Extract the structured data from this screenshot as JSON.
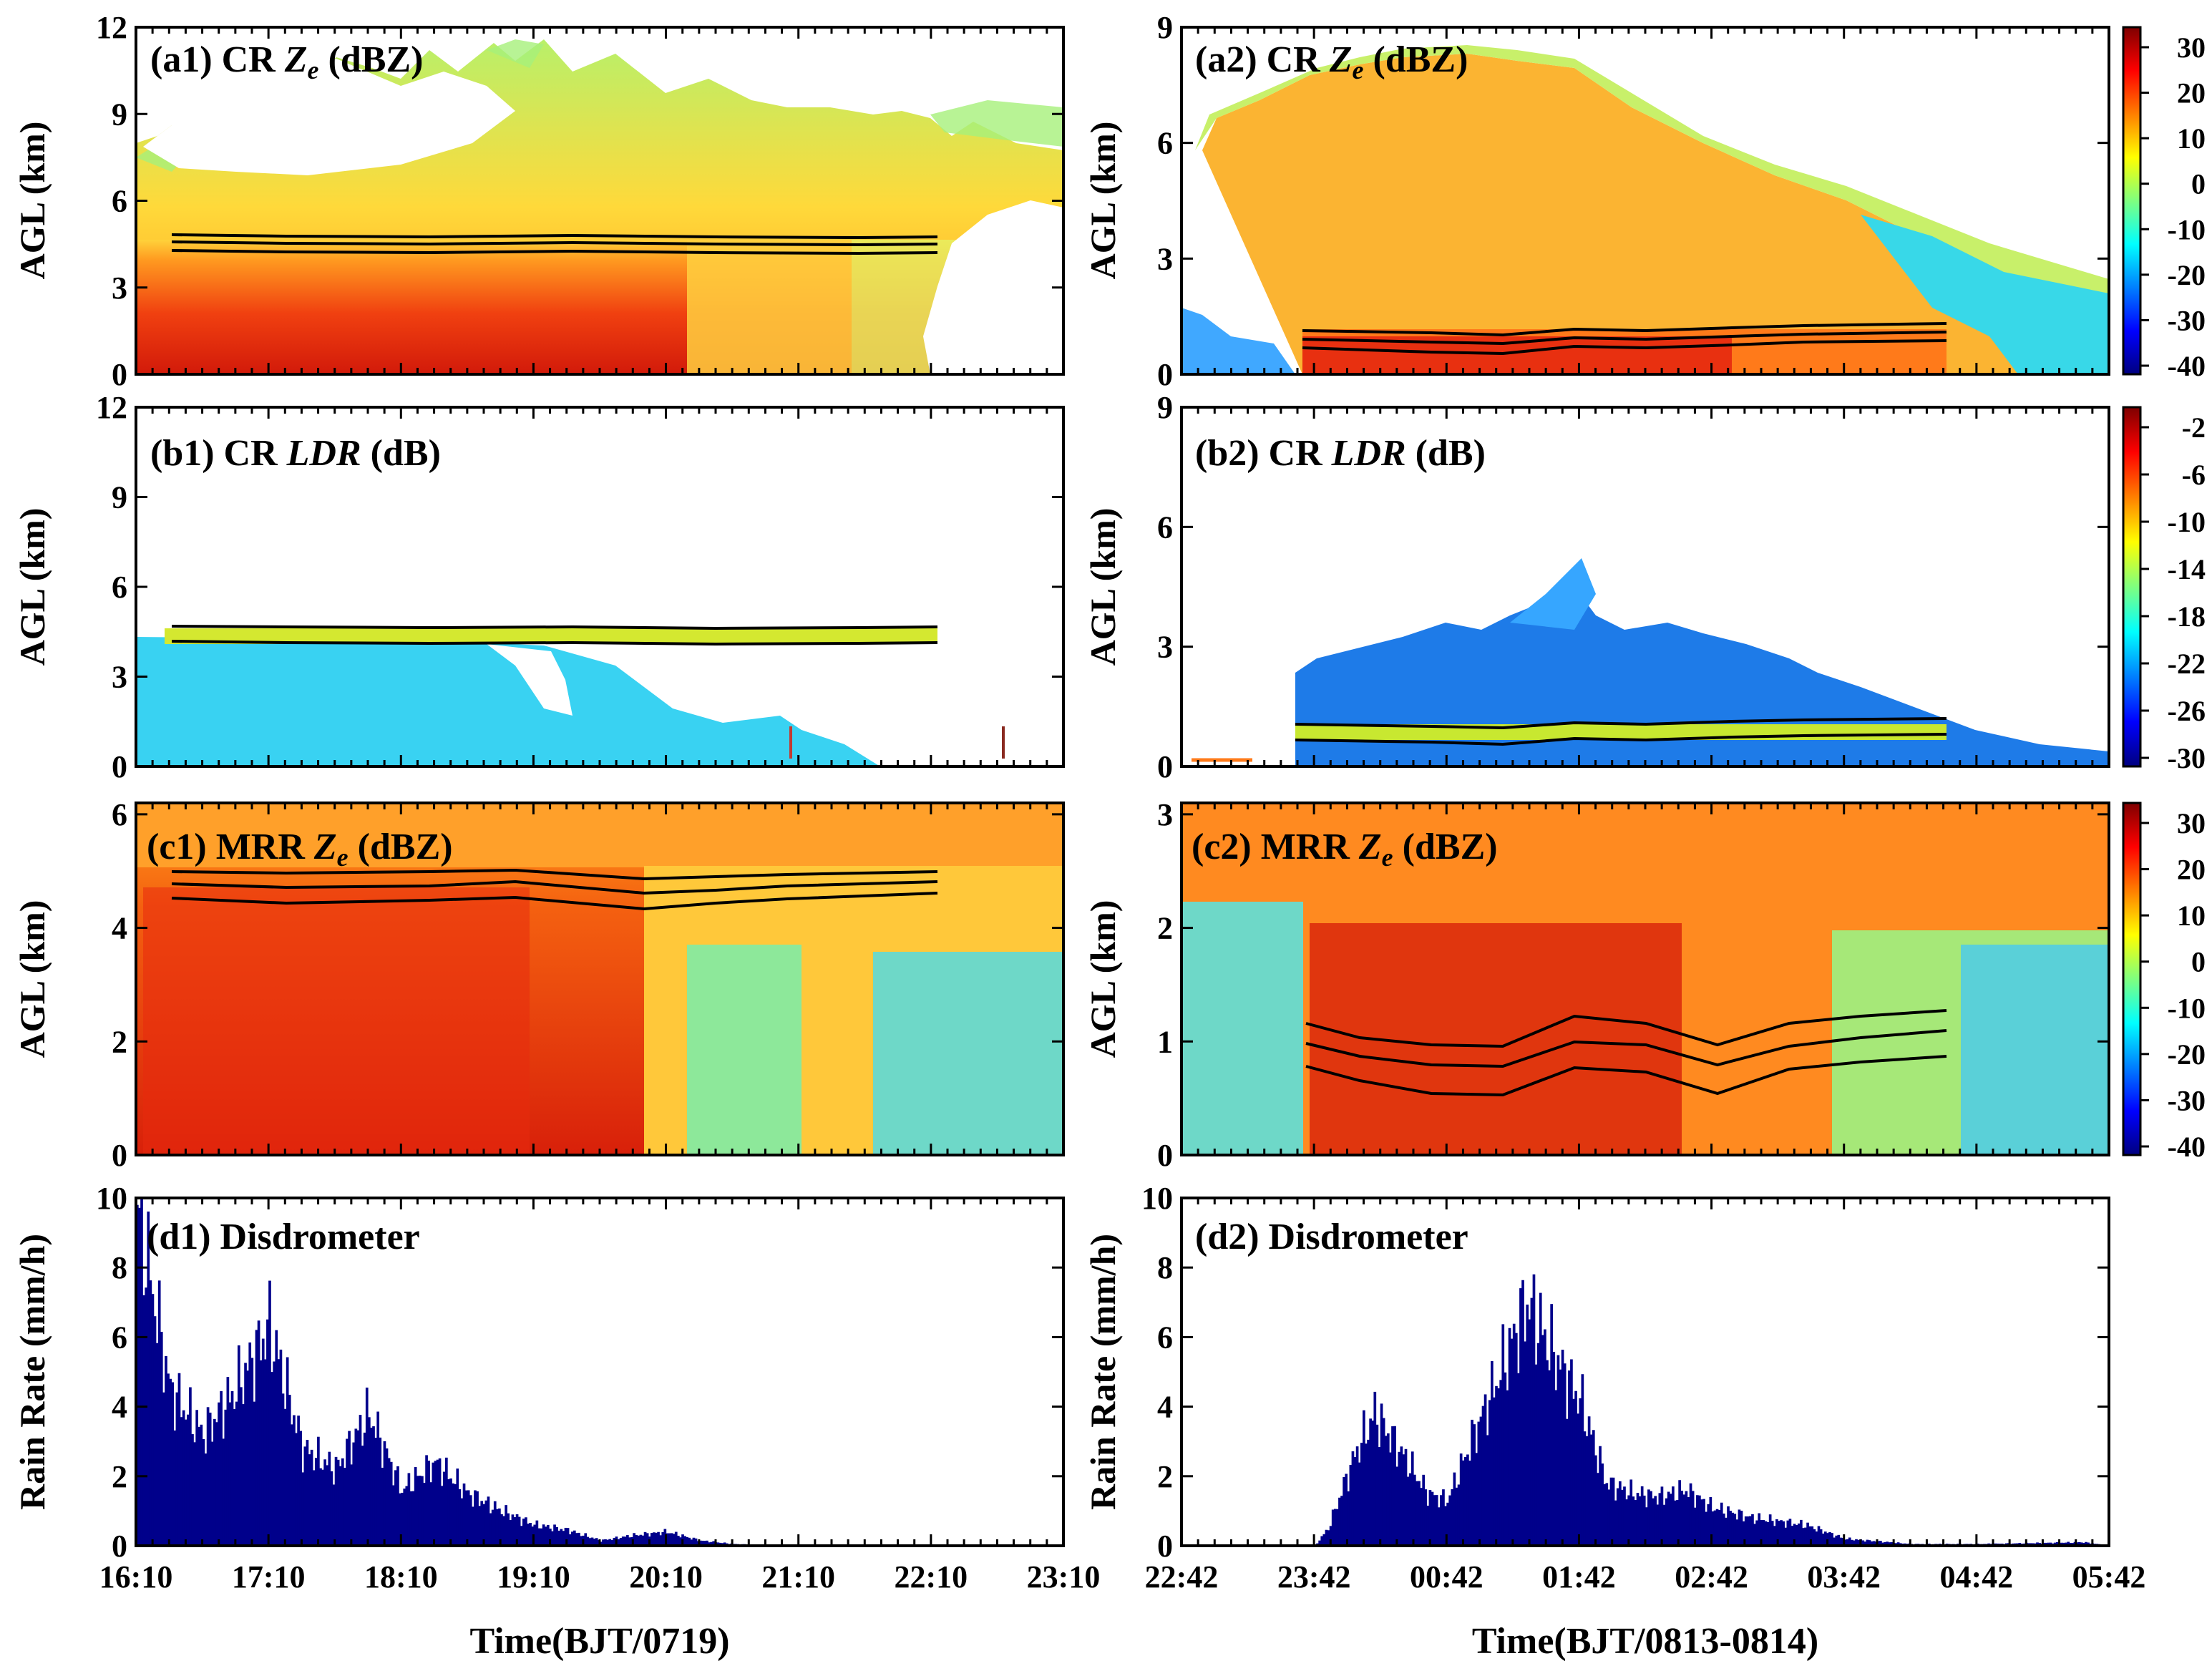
{
  "chart_data": [
    {
      "id": "a1",
      "type": "heatmap",
      "title_prefix": "(a1) CR ",
      "title_italic": "Z",
      "title_sub": "e",
      "title_suffix": " (dBZ)",
      "ylabel": "AGL (km)",
      "ylim": [
        0,
        12
      ],
      "yticks": [
        "0",
        "3",
        "6",
        "9",
        "12"
      ],
      "xlim_label": "16:10 – 23:10",
      "colormap": "jet",
      "clim": [
        -40,
        35
      ],
      "cloud_top_km": [
        9,
        10,
        11.5,
        11,
        10.5,
        9.5,
        8.5,
        7.5
      ],
      "melting_layer_km": [
        4.4,
        4.9
      ]
    },
    {
      "id": "a2",
      "type": "heatmap",
      "title_prefix": "(a2) CR ",
      "title_italic": "Z",
      "title_sub": "e",
      "title_suffix": " (dBZ)",
      "ylabel": "AGL (km)",
      "ylim": [
        0,
        9
      ],
      "yticks": [
        "0",
        "3",
        "6",
        "9"
      ],
      "colormap": "jet",
      "clim": [
        -40,
        35
      ],
      "melting_layer_km": [
        0.6,
        1.2
      ]
    },
    {
      "id": "b1",
      "type": "heatmap",
      "title_prefix": "(b1) CR ",
      "title_italic": "LDR",
      "title_suffix": " (dB)",
      "ylabel": "AGL (km)",
      "ylim": [
        0,
        12
      ],
      "yticks": [
        "0",
        "3",
        "6",
        "9",
        "12"
      ],
      "colormap": "jet",
      "clim": [
        -32,
        -2
      ],
      "melting_layer_km": [
        4.4,
        4.9
      ]
    },
    {
      "id": "b2",
      "type": "heatmap",
      "title_prefix": "(b2) CR ",
      "title_italic": "LDR",
      "title_suffix": " (dB)",
      "ylabel": "AGL (km)",
      "ylim": [
        0,
        9
      ],
      "yticks": [
        "0",
        "3",
        "6",
        "9"
      ],
      "colormap": "jet",
      "clim": [
        -32,
        -2
      ],
      "melting_layer_km": [
        0.6,
        1.2
      ]
    },
    {
      "id": "c1",
      "type": "heatmap",
      "title_prefix": "(c1) MRR ",
      "title_italic": "Z",
      "title_sub": "e",
      "title_suffix": " (dBZ)",
      "ylabel": "AGL (km)",
      "ylim": [
        0,
        6.2
      ],
      "yticks": [
        "0",
        "2",
        "4",
        "6"
      ],
      "colormap": "jet",
      "clim": [
        -40,
        35
      ],
      "melting_layer_km": [
        4.3,
        5.0
      ]
    },
    {
      "id": "c2",
      "type": "heatmap",
      "title_prefix": "(c2) MRR ",
      "title_italic": "Z",
      "title_sub": "e",
      "title_suffix": " (dBZ)",
      "ylabel": "AGL (km)",
      "ylim": [
        0,
        3.1
      ],
      "yticks": [
        "0",
        "1",
        "2",
        "3"
      ],
      "colormap": "jet",
      "clim": [
        -40,
        35
      ],
      "melting_layer_km": [
        0.5,
        1.3
      ]
    },
    {
      "id": "d1",
      "type": "bar",
      "title": "(d1) Disdrometer",
      "ylabel": "Rain Rate (mm/h)",
      "ylim": [
        0,
        10
      ],
      "yticks": [
        "0",
        "2",
        "4",
        "6",
        "8",
        "10"
      ],
      "xlabel": "Time(BJT/0719)",
      "xticks": [
        "16:10",
        "17:10",
        "18:10",
        "19:10",
        "20:10",
        "21:10",
        "22:10",
        "23:10"
      ],
      "x_hours": [
        0,
        0.25,
        0.5,
        0.75,
        1.0,
        1.25,
        1.5,
        1.75,
        2.0,
        2.25,
        2.5,
        2.75,
        3.0,
        3.25,
        3.5,
        3.75,
        4.0,
        4.25,
        4.5,
        4.75,
        5.0,
        5.25,
        5.5,
        6.0,
        7.0
      ],
      "values": [
        9.8,
        4.5,
        3.2,
        4.5,
        6.3,
        2.8,
        2.2,
        3.8,
        1.6,
        2.4,
        1.5,
        1.0,
        0.6,
        0.45,
        0.15,
        0.3,
        0.4,
        0.15,
        0.05,
        0.02,
        0,
        0,
        0,
        0,
        0
      ]
    },
    {
      "id": "d2",
      "type": "bar",
      "title": "(d2) Disdrometer",
      "ylabel": "Rain Rate (mm/h)",
      "ylim": [
        0,
        10
      ],
      "yticks": [
        "0",
        "2",
        "4",
        "6",
        "8",
        "10"
      ],
      "xlabel": "Time(BJT/0813-0814)",
      "xticks": [
        "22:42",
        "23:42",
        "00:42",
        "01:42",
        "02:42",
        "03:42",
        "04:42",
        "05:42"
      ],
      "x_hours": [
        0,
        0.5,
        1.0,
        1.1,
        1.3,
        1.45,
        1.7,
        1.85,
        2.0,
        2.2,
        2.4,
        2.6,
        2.8,
        3.0,
        3.2,
        3.4,
        3.6,
        3.8,
        4.0,
        4.3,
        4.7,
        5.0,
        5.5,
        6.0,
        6.8,
        7.0
      ],
      "values": [
        0,
        0,
        0,
        0.5,
        2.6,
        3.8,
        2.4,
        1.5,
        1.3,
        3.2,
        5.0,
        7.0,
        5.5,
        4.2,
        1.8,
        1.5,
        1.4,
        1.6,
        1.1,
        0.8,
        0.6,
        0.2,
        0.05,
        0.05,
        0.1,
        0
      ]
    }
  ],
  "colorbars": [
    {
      "id": "cb_a2",
      "labels": [
        "30",
        "20",
        "10",
        "0",
        "-10",
        "-20",
        "-30",
        "-40"
      ]
    },
    {
      "id": "cb_b2",
      "labels": [
        "-2",
        "-6",
        "-10",
        "-14",
        "-18",
        "-22",
        "-26",
        "-30"
      ]
    },
    {
      "id": "cb_c2",
      "labels": [
        "30",
        "20",
        "10",
        "0",
        "-10",
        "-20",
        "-30",
        "-40"
      ]
    }
  ],
  "colors": {
    "bar": "#00008b",
    "jet": [
      "#00007f",
      "#0000ff",
      "#007fff",
      "#00ffff",
      "#7fff7f",
      "#ffff00",
      "#ff7f00",
      "#ff0000",
      "#7f0000"
    ]
  }
}
